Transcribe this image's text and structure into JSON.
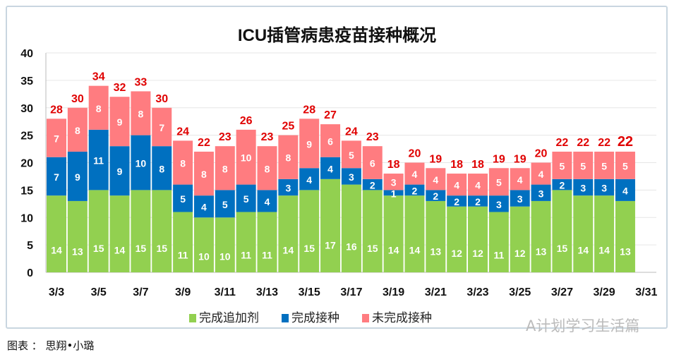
{
  "chart_data": {
    "type": "bar",
    "stacked": true,
    "title": "ICU插管病患疫苗接种概况",
    "categories": [
      "3/3",
      "3/4",
      "3/5",
      "3/6",
      "3/7",
      "3/8",
      "3/9",
      "3/10",
      "3/11",
      "3/12",
      "3/13",
      "3/14",
      "3/15",
      "3/16",
      "3/17",
      "3/18",
      "3/19",
      "3/20",
      "3/21",
      "3/22",
      "3/23",
      "3/24",
      "3/25",
      "3/26",
      "3/27",
      "3/28",
      "3/29",
      "3/30",
      "3/31"
    ],
    "x_tick_labels": [
      "3/3",
      "3/5",
      "3/7",
      "3/9",
      "3/11",
      "3/13",
      "3/15",
      "3/17",
      "3/19",
      "3/21",
      "3/23",
      "3/25",
      "3/27",
      "3/29",
      "3/31"
    ],
    "series": [
      {
        "name": "完成追加剂",
        "color": "#92d050",
        "values": [
          14,
          13,
          15,
          14,
          15,
          15,
          11,
          10,
          10,
          11,
          11,
          14,
          15,
          17,
          16,
          15,
          14,
          14,
          13,
          12,
          12,
          11,
          12,
          13,
          15,
          14,
          14,
          13,
          null
        ]
      },
      {
        "name": "完成接种",
        "color": "#0070c0",
        "values": [
          7,
          9,
          11,
          9,
          10,
          8,
          5,
          4,
          5,
          5,
          4,
          3,
          4,
          4,
          3,
          2,
          1,
          2,
          2,
          2,
          2,
          3,
          3,
          3,
          2,
          3,
          3,
          4,
          null
        ]
      },
      {
        "name": "未完成接种",
        "color": "#ff7c80",
        "values": [
          7,
          8,
          8,
          9,
          8,
          7,
          8,
          8,
          8,
          10,
          8,
          8,
          9,
          6,
          5,
          6,
          3,
          4,
          4,
          4,
          4,
          5,
          4,
          4,
          5,
          5,
          5,
          5,
          null
        ]
      }
    ],
    "totals": [
      28,
      30,
      34,
      32,
      33,
      30,
      24,
      22,
      23,
      26,
      23,
      25,
      28,
      27,
      24,
      23,
      18,
      20,
      19,
      18,
      18,
      19,
      19,
      20,
      22,
      22,
      22,
      22,
      null
    ],
    "total_label_color": "#e00000",
    "ylim": [
      0,
      40
    ],
    "y_ticks": [
      0,
      5,
      10,
      15,
      20,
      25,
      30,
      35,
      40
    ],
    "grid": true,
    "legend_position": "bottom"
  },
  "footer": "图表 ： 思翔•小璐",
  "watermark": "A计划学习生活篇"
}
